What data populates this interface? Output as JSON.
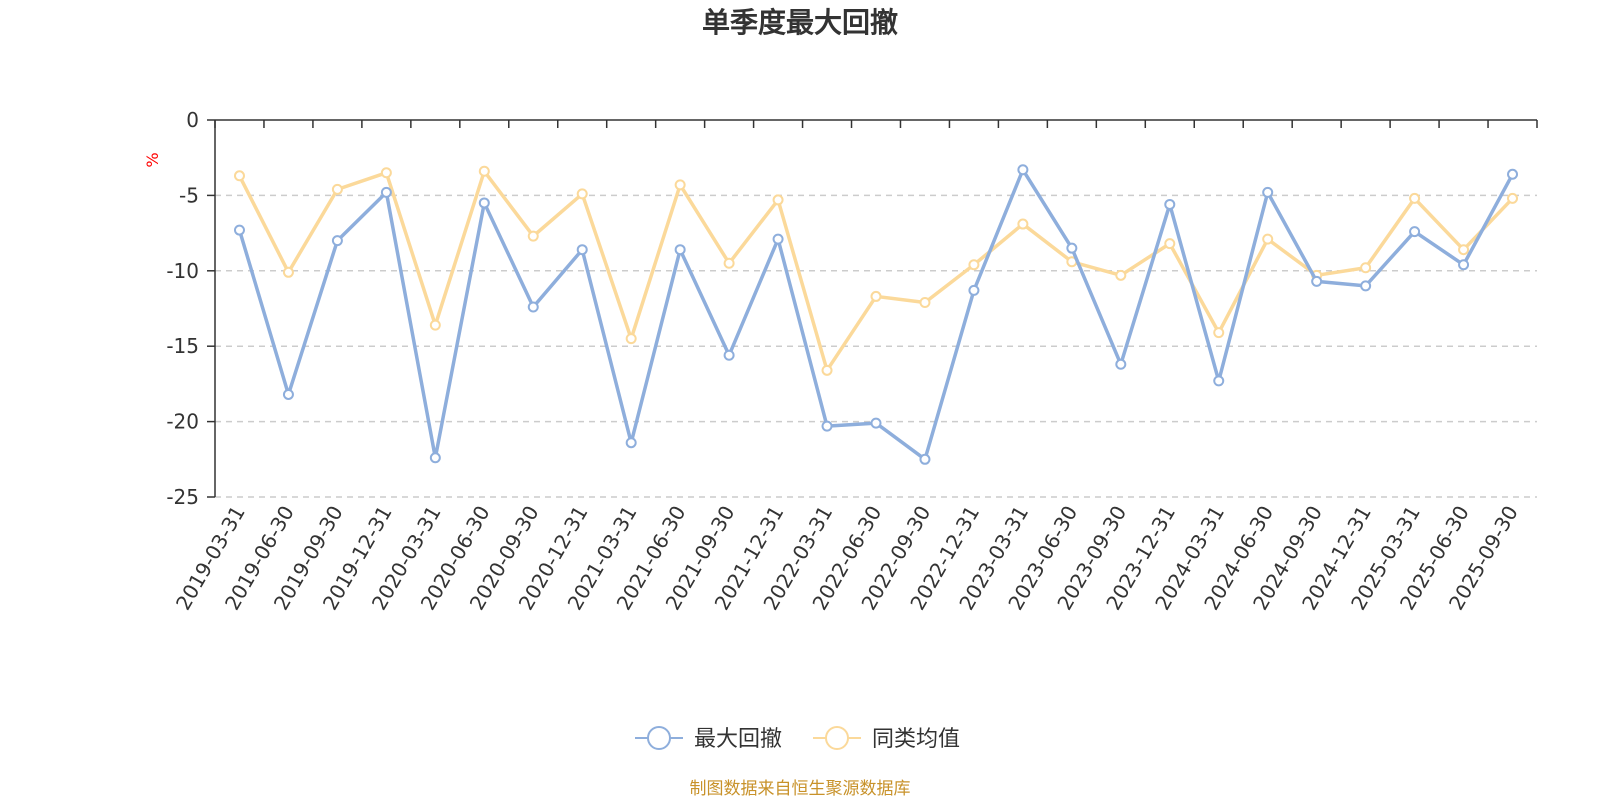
{
  "chart_data": {
    "type": "line",
    "title": "单季度最大回撤",
    "ylabel": "%",
    "ylim": [
      -25,
      0
    ],
    "yticks": [
      0,
      -5,
      -10,
      -15,
      -20,
      -25
    ],
    "grid": "horizontal-dashed",
    "legend_position": "bottom-center",
    "categories": [
      "2019-03-31",
      "2019-06-30",
      "2019-09-30",
      "2019-12-31",
      "2020-03-31",
      "2020-06-30",
      "2020-09-30",
      "2020-12-31",
      "2021-03-31",
      "2021-06-30",
      "2021-09-30",
      "2021-12-31",
      "2022-03-31",
      "2022-06-30",
      "2022-09-30",
      "2022-12-31",
      "2023-03-31",
      "2023-06-30",
      "2023-09-30",
      "2023-12-31",
      "2024-03-31",
      "2024-06-30",
      "2024-09-30",
      "2024-12-31",
      "2025-03-31",
      "2025-06-30",
      "2025-09-30"
    ],
    "series": [
      {
        "name": "最大回撤",
        "color": "#8eaedc",
        "values": [
          -7.3,
          -18.2,
          -8.0,
          -4.8,
          -22.4,
          -5.5,
          -12.4,
          -8.6,
          -21.4,
          -8.6,
          -15.6,
          -7.9,
          -20.3,
          -20.1,
          -22.5,
          -11.3,
          -3.3,
          -8.5,
          -16.2,
          -5.6,
          -17.3,
          -4.8,
          -10.7,
          -11.0,
          -7.4,
          -9.6,
          -3.6
        ]
      },
      {
        "name": "同类均值",
        "color": "#fbd99a",
        "values": [
          -3.7,
          -10.1,
          -4.6,
          -3.5,
          -13.6,
          -3.4,
          -7.7,
          -4.9,
          -14.5,
          -4.3,
          -9.5,
          -5.3,
          -16.6,
          -11.7,
          -12.1,
          -9.6,
          -6.9,
          -9.4,
          -10.3,
          -8.2,
          -14.1,
          -7.9,
          -10.3,
          -9.8,
          -5.2,
          -8.6,
          -5.2
        ]
      }
    ]
  },
  "source_note": "制图数据来自恒生聚源数据库"
}
